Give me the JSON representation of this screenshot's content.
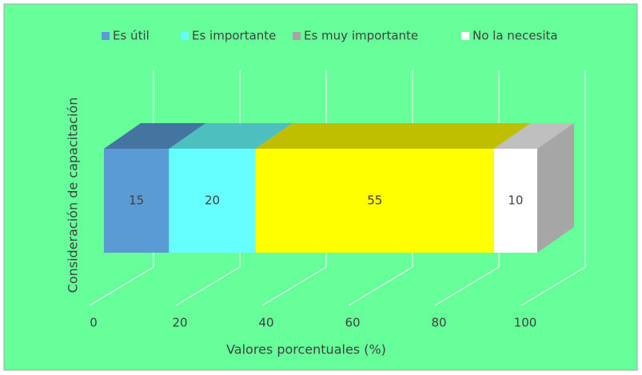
{
  "chart_data": {
    "type": "bar3d_stacked_horizontal",
    "categories": [
      null
    ],
    "series": [
      {
        "name": "Es útil",
        "color": "#5b9bd5",
        "values": [
          15
        ]
      },
      {
        "name": "Es importante",
        "color": "#66ffff",
        "values": [
          20
        ]
      },
      {
        "name": "Es muy importante",
        "color": "#ffff00",
        "legend_color": "#a5a5a5",
        "values": [
          55
        ]
      },
      {
        "name": "No la necesita",
        "color": "#ffffff",
        "values": [
          10
        ]
      }
    ],
    "x_label": "Valores porcentuales (%)",
    "y_label": "Consideración de capacitación",
    "xlim": [
      0,
      100
    ],
    "xticks": [
      0,
      20,
      40,
      60,
      80,
      100
    ],
    "grid": true,
    "legend": "top"
  }
}
